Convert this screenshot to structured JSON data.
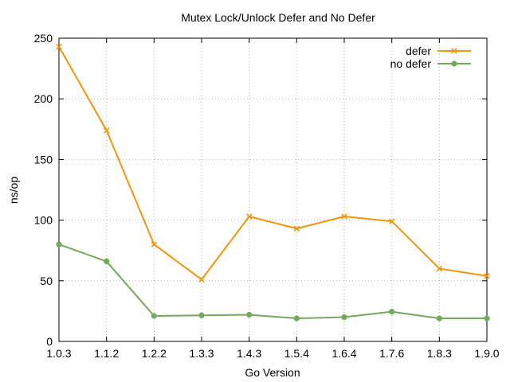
{
  "chart_data": {
    "type": "line",
    "title": "Mutex Lock/Unlock Defer and No Defer",
    "xlabel": "Go Version",
    "ylabel": "ns/op",
    "categories": [
      "1.0.3",
      "1.1.2",
      "1.2.2",
      "1.3.3",
      "1.4.3",
      "1.5.4",
      "1.6.4",
      "1.7.6",
      "1.8.3",
      "1.9.0"
    ],
    "ylim": [
      0,
      250
    ],
    "yticks": [
      0,
      50,
      100,
      150,
      200,
      250
    ],
    "grid": true,
    "legend_position": "top-right",
    "series": [
      {
        "name": "defer",
        "color": "#f0960e",
        "marker": "x",
        "values": [
          243,
          174,
          80,
          51,
          103,
          93,
          103,
          99,
          60,
          54
        ]
      },
      {
        "name": "no defer",
        "color": "#73a95b",
        "marker": "circle",
        "values": [
          80,
          66,
          21,
          21.5,
          22,
          19,
          20,
          24.5,
          19,
          19
        ]
      }
    ]
  }
}
